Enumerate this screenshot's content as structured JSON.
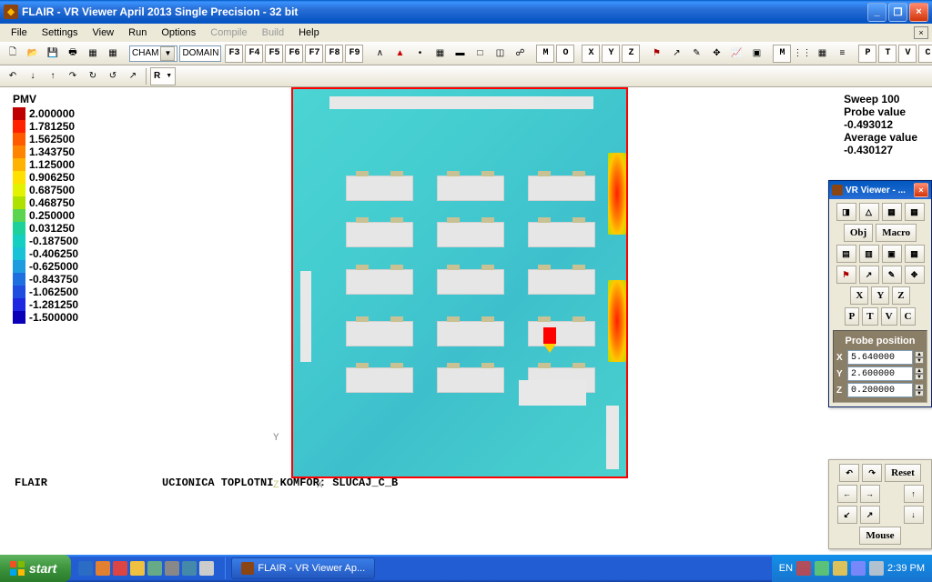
{
  "window": {
    "title": "FLAIR - VR Viewer April 2013 Single Precision - 32 bit"
  },
  "menu": {
    "items": [
      "File",
      "Settings",
      "View",
      "Run",
      "Options",
      "Compile",
      "Build",
      "Help"
    ],
    "disabled": [
      5,
      6
    ]
  },
  "toolbar1": {
    "combo1": "CHAM",
    "combo2": "DOMAIN",
    "fkeys": [
      "F3",
      "F4",
      "F5",
      "F6",
      "F7",
      "F8",
      "F9"
    ],
    "letters1": [
      "M",
      "O"
    ],
    "letters2": [
      "X",
      "Y",
      "Z"
    ],
    "letters3": [
      "M"
    ],
    "letters4": [
      "P",
      "T",
      "V",
      "C"
    ]
  },
  "toolbar2": {
    "r_label": "R"
  },
  "legend": {
    "title": "PMV",
    "items": [
      {
        "c": "#bf0000",
        "v": "2.000000"
      },
      {
        "c": "#ff2100",
        "v": "1.781250"
      },
      {
        "c": "#ff5a00",
        "v": "1.562500"
      },
      {
        "c": "#ff8400",
        "v": "1.343750"
      },
      {
        "c": "#ffb300",
        "v": "1.125000"
      },
      {
        "c": "#ffe000",
        "v": "0.906250"
      },
      {
        "c": "#e3f200",
        "v": "0.687500"
      },
      {
        "c": "#aee000",
        "v": "0.468750"
      },
      {
        "c": "#5cd44f",
        "v": "0.250000"
      },
      {
        "c": "#1ed19a",
        "v": "0.031250"
      },
      {
        "c": "#15cfc0",
        "v": "-0.187500"
      },
      {
        "c": "#18c3d8",
        "v": "-0.406250"
      },
      {
        "c": "#1e9ce0",
        "v": "-0.625000"
      },
      {
        "c": "#1e70e0",
        "v": "-0.843750"
      },
      {
        "c": "#1e4de0",
        "v": "-1.062500"
      },
      {
        "c": "#1e28e0",
        "v": "-1.281250"
      },
      {
        "c": "#0b00b7",
        "v": "-1.500000"
      }
    ]
  },
  "info": {
    "sweep": "Sweep 100",
    "probe_lbl": "Probe value",
    "probe_val": "-0.493012",
    "avg_lbl": "Average value",
    "avg_val": "-0.430127"
  },
  "labels": {
    "flair": "FLAIR",
    "subtitle": "UCIONICA TOPLOTNI KOMFOR:  SLUCAJ_C_B"
  },
  "vr": {
    "title": "VR Viewer - ...",
    "obj": "Obj",
    "macro": "Macro",
    "xyz": [
      "X",
      "Y",
      "Z"
    ],
    "ptvc": [
      "P",
      "T",
      "V",
      "C"
    ],
    "probe_pos": "Probe position",
    "pos": {
      "X": "5.640000",
      "Y": "2.600000",
      "Z": "0.200000"
    },
    "reset": "Reset",
    "mouse": "Mouse"
  },
  "taskbar": {
    "start": "start",
    "task1": "FLAIR - VR Viewer Ap...",
    "lang": "EN",
    "time": "2:39 PM"
  }
}
